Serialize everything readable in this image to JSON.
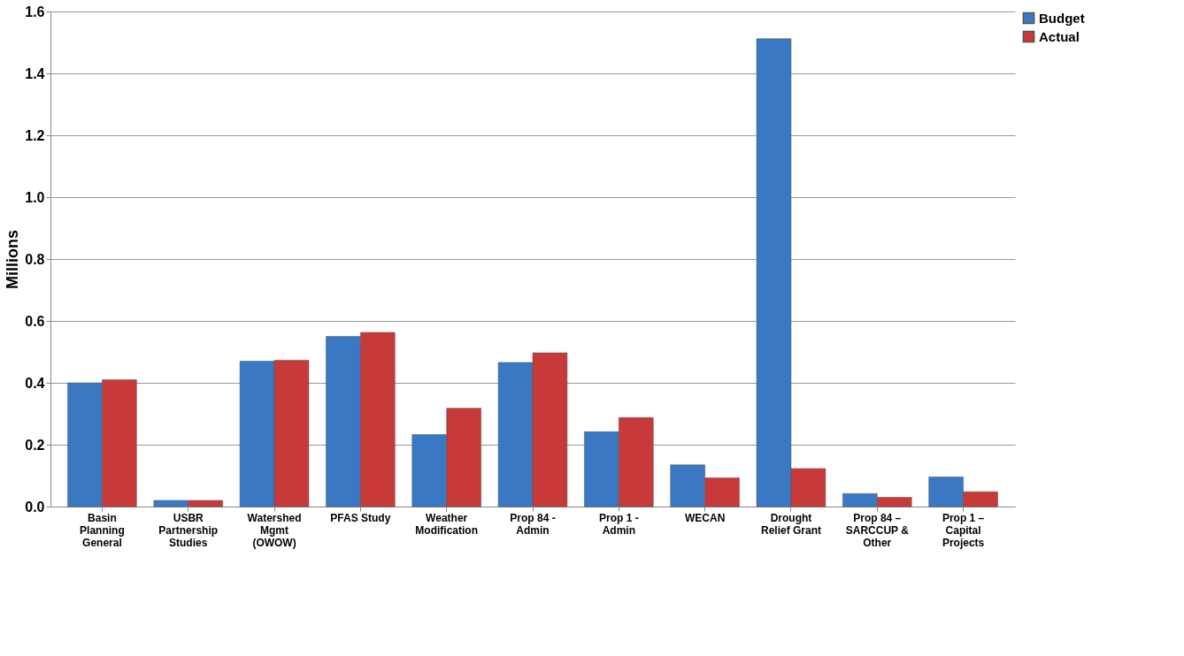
{
  "chart_data": {
    "type": "bar",
    "ylabel": "Millions",
    "categories": [
      "Basin\nPlanning\nGeneral",
      "USBR\nPartnership\nStudies",
      "Watershed\nMgmt\n(OWOW)",
      "PFAS Study",
      "Weather\nModification",
      "Prop 84 -\nAdmin",
      "Prop 1 -\nAdmin",
      "WECAN",
      "Drought\nRelief Grant",
      "Prop 84 –\nSARCCUP &\nOther",
      "Prop 1 –\nCapital\nProjects"
    ],
    "series": [
      {
        "name": "Budget",
        "color": "#3a78c3",
        "values": [
          0.4,
          0.02,
          0.47,
          0.55,
          0.233,
          0.466,
          0.242,
          0.135,
          1.512,
          0.042,
          0.096
        ]
      },
      {
        "name": "Actual",
        "color": "#c8393a",
        "values": [
          0.41,
          0.02,
          0.473,
          0.563,
          0.318,
          0.497,
          0.288,
          0.093,
          0.123,
          0.03,
          0.048
        ]
      }
    ],
    "ylim": [
      0,
      1.6
    ],
    "yticks": [
      {
        "value": 0,
        "label": "0.0"
      },
      {
        "value": 0.2,
        "label": "0.2"
      },
      {
        "value": 0.4,
        "label": "0.4"
      },
      {
        "value": 0.6,
        "label": "0.6"
      },
      {
        "value": 0.8,
        "label": "0.8"
      },
      {
        "value": 1.0,
        "label": "1.0"
      },
      {
        "value": 1.2,
        "label": "1.2"
      },
      {
        "value": 1.4,
        "label": "1.4"
      },
      {
        "value": 1.6,
        "label": "1.6"
      }
    ],
    "grid": "y",
    "legend": "right"
  }
}
